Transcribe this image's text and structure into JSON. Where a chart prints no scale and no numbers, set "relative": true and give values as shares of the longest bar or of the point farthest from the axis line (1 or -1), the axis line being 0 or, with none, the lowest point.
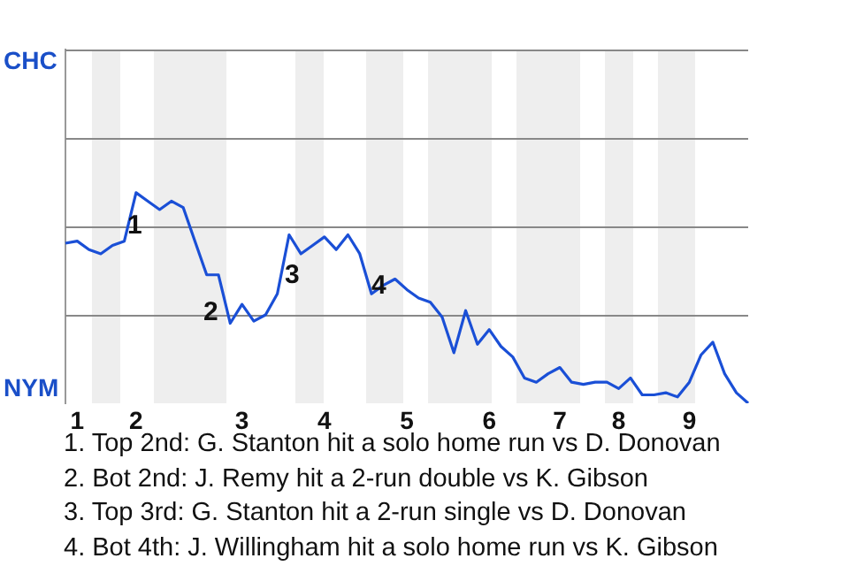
{
  "chart_data": {
    "type": "line",
    "relative": true,
    "categories": [
      null,
      "1",
      null,
      null,
      null,
      null,
      "2",
      null,
      null,
      null,
      null,
      null,
      null,
      null,
      null,
      "3",
      null,
      null,
      null,
      null,
      null,
      null,
      "4",
      null,
      null,
      null,
      null,
      null,
      null,
      "5",
      null,
      null,
      null,
      null,
      null,
      null,
      "6",
      null,
      null,
      null,
      null,
      null,
      "7",
      null,
      null,
      null,
      null,
      "8",
      null,
      null,
      null,
      null,
      null,
      "9",
      null,
      null,
      null,
      null,
      null
    ],
    "series": [
      {
        "color": "#1a4fd6",
        "values": [
          0.76,
          0.77,
          0.73,
          0.71,
          0.75,
          0.77,
          1,
          0.96,
          0.92,
          0.96,
          0.93,
          0.77,
          0.61,
          0.61,
          0.38,
          0.47,
          0.39,
          0.42,
          0.52,
          0.8,
          0.71,
          0.75,
          0.79,
          0.73,
          0.8,
          0.71,
          0.52,
          0.56,
          0.59,
          0.54,
          0.5,
          0.48,
          0.41,
          0.24,
          0.44,
          0.28,
          0.35,
          0.27,
          0.22,
          0.12,
          0.1,
          0.14,
          0.17,
          0.1,
          0.09,
          0.1,
          0.1,
          0.07,
          0.12,
          0.04,
          0.04,
          0.05,
          0.03,
          0.1,
          0.23,
          0.29,
          0.14,
          0.05,
          0
        ]
      }
    ],
    "ref_lines": [
      {
        "axis": "y",
        "value": 0.42,
        "color": "#888888"
      },
      {
        "axis": "y",
        "value": 0.84,
        "color": "#888888"
      },
      {
        "axis": "y",
        "value": 1.26,
        "color": "#888888"
      },
      {
        "axis": "y",
        "value": 1.68,
        "color": "#888888"
      }
    ],
    "marker": "none",
    "line_style": "solid",
    "annotations": [
      "CHC",
      "NYM",
      "1",
      "2",
      "3",
      "4",
      "1. Top 2nd: G. Stanton hit a solo home run vs D. Donovan",
      "2. Bot 2nd: J. Remy hit a 2-run double vs K. Gibson",
      "3. Top 3rd: G. Stanton hit a 2-run single vs D. Donovan",
      "4. Bot 4th: J. Willingham hit a solo home run vs K. Gibson"
    ]
  }
}
